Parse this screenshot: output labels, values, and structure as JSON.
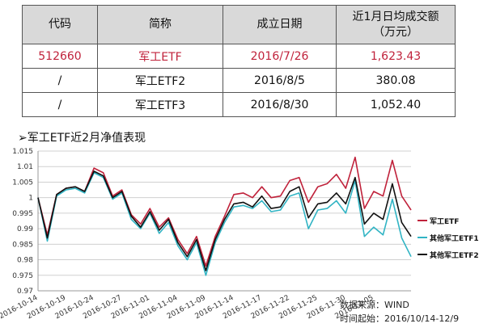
{
  "table": {
    "headers": [
      "代码",
      "简称",
      "成立日期",
      "近1月日均成交额\n（万元）"
    ],
    "rows": [
      {
        "code": "512660",
        "name": "军工ETF",
        "date": "2016/7/26",
        "amount": "1,623.43",
        "highlight": true
      },
      {
        "code": "/",
        "name": "军工ETF2",
        "date": "2016/8/5",
        "amount": "380.08",
        "highlight": false
      },
      {
        "code": "/",
        "name": "军工ETF3",
        "date": "2016/8/30",
        "amount": "1,052.40",
        "highlight": false
      }
    ]
  },
  "chart_title": "➢军工ETF近2月净值表现",
  "source": {
    "line1": "数据来源：WIND",
    "line2": "时间起始：2016/10/14-12/9"
  },
  "chart_data": {
    "type": "line",
    "title": "",
    "xlabel": "",
    "ylabel": "",
    "ylim": [
      0.97,
      1.015
    ],
    "yticks": [
      "0.97",
      "0.975",
      "0.98",
      "0.985",
      "0.99",
      "0.995",
      "1",
      "1.005",
      "1.01",
      "1.015"
    ],
    "grid": true,
    "legend": "right",
    "x": [
      "2016-10-14",
      "2016-10-17",
      "2016-10-18",
      "2016-10-19",
      "2016-10-20",
      "2016-10-21",
      "2016-10-24",
      "2016-10-25",
      "2016-10-26",
      "2016-10-27",
      "2016-10-28",
      "2016-10-31",
      "2016-11-01",
      "2016-11-02",
      "2016-11-03",
      "2016-11-04",
      "2016-11-07",
      "2016-11-08",
      "2016-11-09",
      "2016-11-10",
      "2016-11-11",
      "2016-11-14",
      "2016-11-15",
      "2016-11-16",
      "2016-11-17",
      "2016-11-18",
      "2016-11-21",
      "2016-11-22",
      "2016-11-23",
      "2016-11-24",
      "2016-11-25",
      "2016-11-28",
      "2016-11-29",
      "2016-11-30",
      "2016-12-01",
      "2016-12-02",
      "2016-12-05",
      "2016-12-06",
      "2016-12-07",
      "2016-12-08",
      "2016-12-09"
    ],
    "xtick_labels": [
      "2016-10-14",
      "2016-10-19",
      "2016-10-24",
      "2016-10-27",
      "2016-11-01",
      "2016-11-04",
      "2016-11-09",
      "2016-11-14",
      "2016-11-17",
      "2016-11-22",
      "2016-11-25",
      "2016-11-30",
      "2016-12-05"
    ],
    "series": [
      {
        "name": "军工ETF",
        "color": "#c0223b",
        "values": [
          1.0,
          0.988,
          1.001,
          1.003,
          1.0035,
          1.002,
          1.0095,
          1.008,
          1.0005,
          1.0025,
          0.9945,
          0.9915,
          0.9965,
          0.9905,
          0.9935,
          0.9865,
          0.982,
          0.9875,
          0.978,
          0.9875,
          0.994,
          1.001,
          1.0015,
          1.0,
          1.0035,
          1.0,
          1.0005,
          1.0055,
          1.0065,
          0.9985,
          1.0035,
          1.0045,
          1.0075,
          1.003,
          1.013,
          0.9965,
          1.002,
          1.0005,
          1.012,
          1.0005,
          0.996
        ]
      },
      {
        "name": "其他军工ETF1",
        "color": "#31b4c4",
        "values": [
          1.0,
          0.986,
          1.0005,
          1.0025,
          1.003,
          1.0015,
          1.008,
          1.0065,
          0.9995,
          1.0015,
          0.993,
          0.99,
          0.995,
          0.9885,
          0.992,
          0.9845,
          0.98,
          0.9855,
          0.975,
          0.9855,
          0.992,
          0.997,
          0.9975,
          0.9965,
          0.999,
          0.9955,
          0.996,
          1.0005,
          1.0015,
          0.99,
          0.996,
          0.9965,
          0.999,
          0.995,
          1.0055,
          0.9875,
          0.9905,
          0.988,
          0.9995,
          0.987,
          0.981
        ]
      },
      {
        "name": "其他军工ETF2",
        "color": "#111111",
        "values": [
          1.0,
          0.987,
          1.001,
          1.003,
          1.0035,
          1.002,
          1.0085,
          1.007,
          1.0,
          1.002,
          0.994,
          0.9905,
          0.9955,
          0.9895,
          0.993,
          0.9855,
          0.981,
          0.9865,
          0.9765,
          0.9865,
          0.993,
          0.998,
          0.9985,
          0.997,
          1.0005,
          0.9965,
          0.997,
          1.002,
          1.0035,
          0.9935,
          0.998,
          0.9985,
          1.0015,
          0.998,
          1.0065,
          0.9915,
          0.995,
          0.993,
          1.0045,
          0.992,
          0.9875
        ]
      }
    ]
  }
}
